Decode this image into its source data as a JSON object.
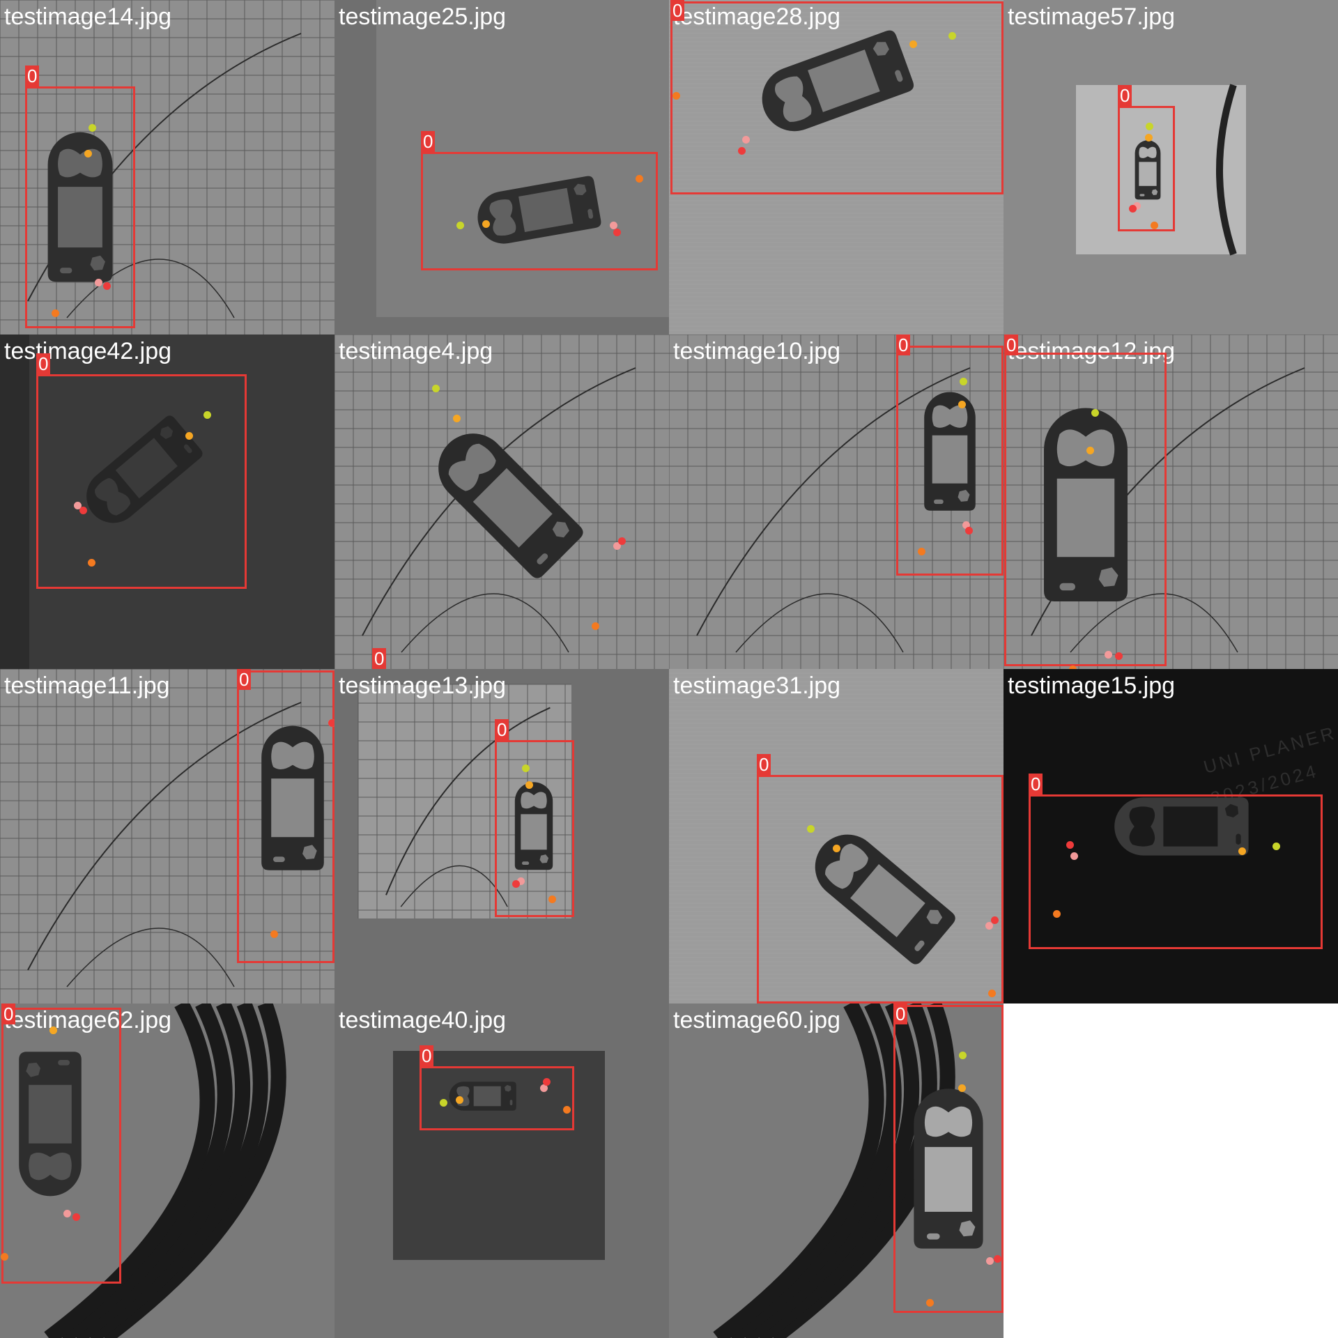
{
  "keypoint_colors": [
    "#c8d52a",
    "#f5a623",
    "#f29a9a",
    "#ee3b3b",
    "#f47a20"
  ],
  "tiles": [
    {
      "file": "testimage14.jpg",
      "class_label": "0",
      "scene": "grid-paper"
    },
    {
      "file": "testimage25.jpg",
      "class_label": "0",
      "scene": "fabric"
    },
    {
      "file": "testimage28.jpg",
      "class_label": "0",
      "scene": "fabric-light"
    },
    {
      "file": "testimage57.jpg",
      "class_label": "0",
      "scene": "small-frame"
    },
    {
      "file": "testimage42.jpg",
      "class_label": "0",
      "scene": "dark-table"
    },
    {
      "file": "testimage4.jpg",
      "class_label": "0",
      "scene": "grid-paper"
    },
    {
      "file": "testimage10.jpg",
      "class_label": "0",
      "scene": "grid-paper"
    },
    {
      "file": "testimage12.jpg",
      "class_label": "0",
      "scene": "grid-paper"
    },
    {
      "file": "testimage11.jpg",
      "class_label": "0",
      "scene": "grid-paper"
    },
    {
      "file": "testimage13.jpg",
      "class_label": "0",
      "scene": "grid-paper-inset"
    },
    {
      "file": "testimage31.jpg",
      "class_label": "0",
      "scene": "fabric-light"
    },
    {
      "file": "testimage15.jpg",
      "class_label": "0",
      "scene": "planner-dark"
    },
    {
      "file": "testimage62.jpg",
      "class_label": "0",
      "scene": "cable"
    },
    {
      "file": "testimage40.jpg",
      "class_label": "0",
      "scene": "dark-inset"
    },
    {
      "file": "testimage60.jpg",
      "class_label": "0",
      "scene": "cable"
    }
  ],
  "planner_text": [
    "UNI PLANER",
    "2023/2024"
  ]
}
